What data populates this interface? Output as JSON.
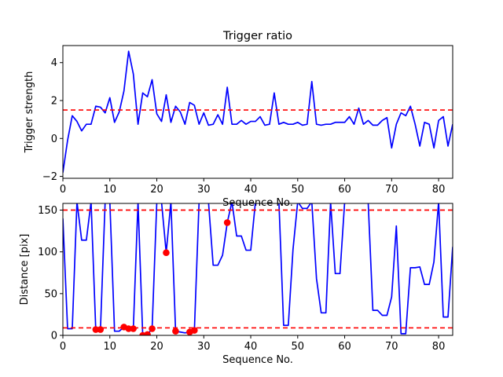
{
  "chart_data": [
    {
      "type": "line",
      "title": "Trigger ratio",
      "xlabel": "Sequence No.",
      "ylabel": "Trigger strength",
      "xlim": [
        0,
        83
      ],
      "ylim": [
        -2.1,
        4.9
      ],
      "xticks": [
        0,
        10,
        20,
        30,
        40,
        50,
        60,
        70,
        80
      ],
      "yticks": [
        -2,
        0,
        2,
        4
      ],
      "grid": false,
      "series": [
        {
          "color": "#0000ff",
          "x": [
            0,
            1,
            2,
            3,
            4,
            5,
            6,
            7,
            8,
            9,
            10,
            11,
            12,
            13,
            14,
            15,
            16,
            17,
            18,
            19,
            20,
            21,
            22,
            23,
            24,
            25,
            26,
            27,
            28,
            29,
            30,
            31,
            32,
            33,
            34,
            35,
            36,
            37,
            38,
            39,
            40,
            41,
            42,
            43,
            44,
            45,
            46,
            47,
            48,
            49,
            50,
            51,
            52,
            53,
            54,
            55,
            56,
            57,
            58,
            59,
            60,
            61,
            62,
            63,
            64,
            65,
            66,
            67,
            68,
            69,
            70,
            71,
            72,
            73,
            74,
            75,
            76,
            77,
            78,
            79,
            80,
            81,
            82,
            83
          ],
          "values": [
            -1.8,
            -0.1,
            1.2,
            0.9,
            0.4,
            0.75,
            0.75,
            1.7,
            1.65,
            1.35,
            2.15,
            0.85,
            1.4,
            2.5,
            4.6,
            3.4,
            0.75,
            2.4,
            2.2,
            3.1,
            1.3,
            0.9,
            2.3,
            0.85,
            1.7,
            1.4,
            0.75,
            1.9,
            1.75,
            0.75,
            1.35,
            0.7,
            0.75,
            1.25,
            0.75,
            2.7,
            0.75,
            0.75,
            0.95,
            0.75,
            0.9,
            0.9,
            1.15,
            0.7,
            0.75,
            2.4,
            0.75,
            0.85,
            0.75,
            0.75,
            0.85,
            0.7,
            0.75,
            3.0,
            0.75,
            0.7,
            0.75,
            0.75,
            0.85,
            0.85,
            0.85,
            1.15,
            0.75,
            1.6,
            0.75,
            0.95,
            0.7,
            0.7,
            0.95,
            1.1,
            -0.5,
            0.75,
            1.35,
            1.2,
            1.7,
            0.75,
            -0.4,
            0.85,
            0.75,
            -0.5,
            0.95,
            1.15,
            -0.4,
            0.75
          ]
        }
      ],
      "hlines": [
        {
          "y": 1.5,
          "color": "#ff0000",
          "style": "dashed"
        }
      ]
    },
    {
      "type": "line",
      "title": "",
      "xlabel": "Sequence No.",
      "ylabel": "Distance [pix]",
      "xlim": [
        0,
        83
      ],
      "ylim": [
        0,
        158
      ],
      "xticks": [
        0,
        10,
        20,
        30,
        40,
        50,
        60,
        70,
        80
      ],
      "yticks": [
        0,
        50,
        100,
        150
      ],
      "grid": false,
      "series": [
        {
          "color": "#0000ff",
          "x": [
            0,
            1,
            2,
            3,
            4,
            5,
            6,
            7,
            8,
            9,
            10,
            11,
            12,
            13,
            14,
            15,
            16,
            17,
            18,
            19,
            20,
            21,
            22,
            23,
            24,
            25,
            26,
            27,
            28,
            29,
            30,
            31,
            32,
            33,
            34,
            35,
            36,
            37,
            38,
            39,
            40,
            41,
            42,
            43,
            44,
            45,
            46,
            47,
            48,
            49,
            50,
            51,
            52,
            53,
            54,
            55,
            56,
            57,
            58,
            59,
            60,
            61,
            62,
            63,
            64,
            65,
            66,
            67,
            68,
            69,
            70,
            71,
            72,
            73,
            74,
            75,
            76,
            77,
            78,
            79,
            80,
            81,
            82,
            83
          ],
          "values": [
            140,
            8,
            8,
            160,
            114,
            114,
            160,
            7,
            7,
            160,
            160,
            5,
            5,
            10,
            8,
            8,
            160,
            0,
            1,
            8,
            160,
            160,
            99,
            160,
            5,
            4,
            3,
            4,
            6,
            160,
            160,
            160,
            84,
            84,
            96,
            135,
            160,
            119,
            119,
            102,
            102,
            160,
            160,
            160,
            160,
            160,
            160,
            12,
            12,
            103,
            160,
            152,
            152,
            160,
            68,
            27,
            27,
            160,
            74,
            74,
            160,
            160,
            160,
            160,
            160,
            160,
            30,
            30,
            24,
            24,
            46,
            131,
            2,
            2,
            81,
            81,
            82,
            61,
            61,
            88,
            160,
            22,
            22,
            106
          ]
        }
      ],
      "markers": {
        "color": "#ff0000",
        "points": [
          [
            7,
            7
          ],
          [
            8,
            7
          ],
          [
            13,
            10
          ],
          [
            14,
            8
          ],
          [
            15,
            8
          ],
          [
            17,
            0
          ],
          [
            18,
            1
          ],
          [
            19,
            8
          ],
          [
            22,
            99
          ],
          [
            24,
            5
          ],
          [
            27,
            4
          ],
          [
            28,
            6
          ],
          [
            35,
            135
          ]
        ]
      },
      "hlines": [
        {
          "y": 150,
          "color": "#ff0000",
          "style": "dashed"
        },
        {
          "y": 9,
          "color": "#ff0000",
          "style": "dashed"
        }
      ]
    }
  ]
}
